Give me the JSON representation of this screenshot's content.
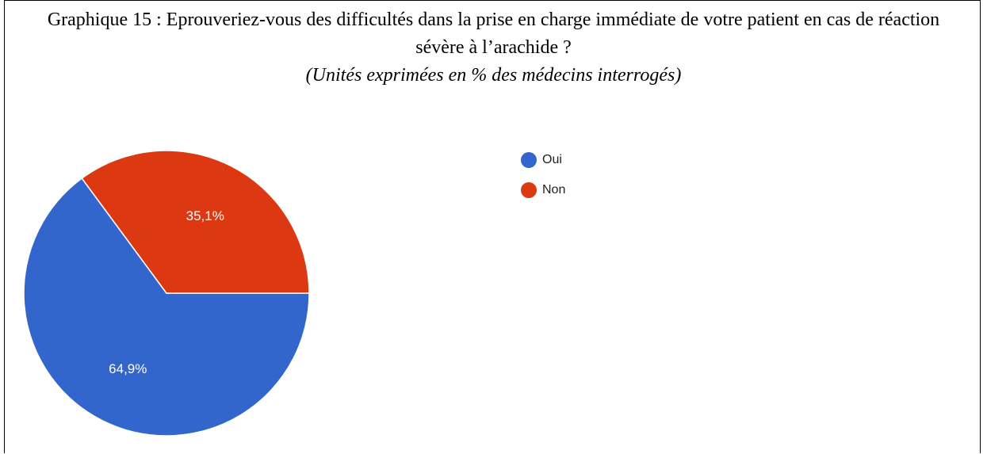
{
  "chart_data": {
    "type": "pie",
    "title": "Graphique 15 : Eprouveriez-vous des difficultés dans la prise en charge immédiate de votre patient en cas de réaction sévère à l’arachide ?",
    "subtitle": "(Unités exprimées en % des médecins interrogés)",
    "categories": [
      "Oui",
      "Non"
    ],
    "values": [
      64.9,
      35.1
    ],
    "value_labels": [
      "64,9%",
      "35,1%"
    ],
    "colors": [
      "#3366cc",
      "#dc3912"
    ],
    "legend": "right"
  }
}
